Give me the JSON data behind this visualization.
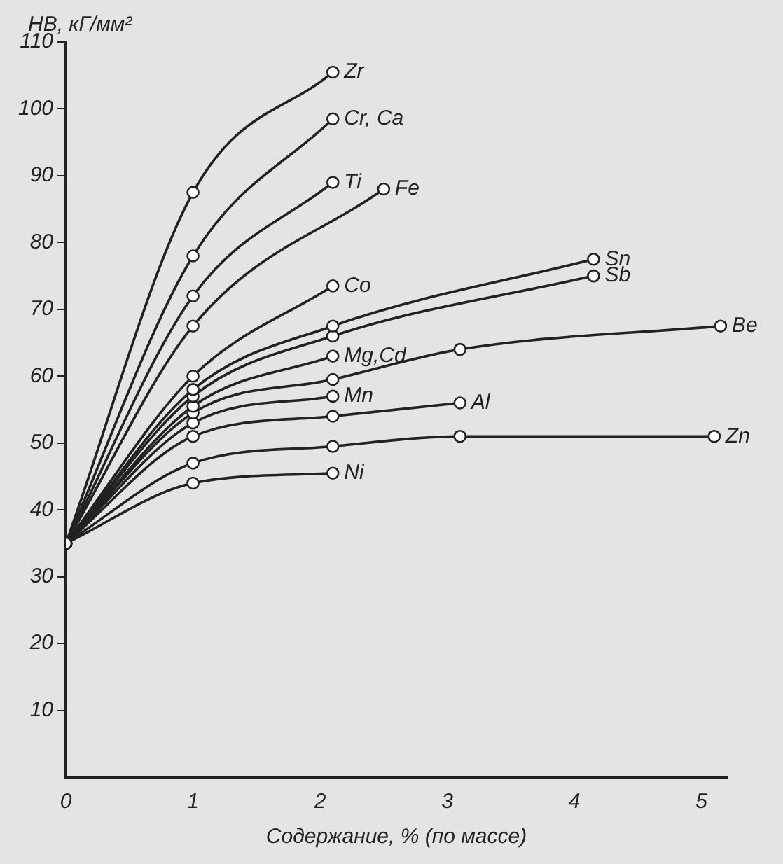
{
  "chart_data": {
    "type": "line",
    "ylabel": "НВ, кГ/мм²",
    "xlabel": "Содержание, % (по массе)",
    "xlim": [
      0,
      5.2
    ],
    "xticks": [
      0,
      1,
      2,
      3,
      4,
      5
    ],
    "ylim": [
      0,
      110
    ],
    "yticks": [
      10,
      20,
      30,
      40,
      50,
      60,
      70,
      80,
      90,
      100,
      110
    ],
    "marker": "circle",
    "legend": false,
    "series": [
      {
        "name": "Zr",
        "color": "#222222",
        "x": [
          0,
          1,
          2.1
        ],
        "values": [
          35,
          87.5,
          105.5
        ]
      },
      {
        "name": "Cr, Ca",
        "color": "#222222",
        "x": [
          0,
          1,
          2.1
        ],
        "values": [
          35,
          78,
          98.5
        ]
      },
      {
        "name": "Ti",
        "color": "#222222",
        "x": [
          0,
          1,
          2.1
        ],
        "values": [
          35,
          72,
          89
        ]
      },
      {
        "name": "Fe",
        "color": "#222222",
        "x": [
          0,
          1,
          2.5
        ],
        "values": [
          35,
          67.5,
          88
        ]
      },
      {
        "name": "Co",
        "color": "#222222",
        "x": [
          0,
          1,
          2.1
        ],
        "values": [
          35,
          60,
          73.5
        ]
      },
      {
        "name": "Sn",
        "color": "#222222",
        "x": [
          0,
          1,
          2.1,
          4.15
        ],
        "values": [
          35,
          58,
          67.5,
          77.5
        ]
      },
      {
        "name": "Sb",
        "color": "#222222",
        "x": [
          0,
          1,
          2.1,
          4.15
        ],
        "values": [
          35,
          57,
          66,
          75
        ]
      },
      {
        "name": "Mg,Cd",
        "color": "#222222",
        "x": [
          0,
          1,
          2.1
        ],
        "values": [
          35,
          55.5,
          63
        ]
      },
      {
        "name": "Be",
        "color": "#222222",
        "x": [
          0,
          1,
          2.1,
          3.1,
          5.15
        ],
        "values": [
          35,
          54.5,
          59.5,
          64,
          67.5
        ]
      },
      {
        "name": "Mn",
        "color": "#222222",
        "x": [
          0,
          1,
          2.1
        ],
        "values": [
          35,
          53,
          57
        ]
      },
      {
        "name": "Al",
        "color": "#222222",
        "x": [
          0,
          1,
          2.1,
          3.1
        ],
        "values": [
          35,
          51,
          54,
          56
        ]
      },
      {
        "name": "Zn",
        "color": "#222222",
        "x": [
          0,
          1,
          2.1,
          3.1,
          5.1
        ],
        "values": [
          35,
          47,
          49.5,
          51,
          51
        ]
      },
      {
        "name": "Ni",
        "color": "#222222",
        "x": [
          0,
          1,
          2.1
        ],
        "values": [
          35,
          44,
          45.5
        ]
      }
    ]
  }
}
